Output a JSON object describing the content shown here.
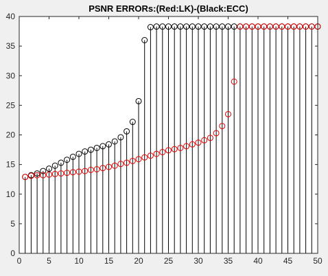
{
  "chart_data": {
    "type": "stem",
    "title": "PSNR ERRORs:(Red:LK)-(Black:ECC)",
    "xlabel": "",
    "ylabel": "",
    "xlim": [
      0,
      50
    ],
    "ylim": [
      0,
      40
    ],
    "xticks": [
      0,
      5,
      10,
      15,
      20,
      25,
      30,
      35,
      40,
      45,
      50
    ],
    "yticks": [
      0,
      5,
      10,
      15,
      20,
      25,
      30,
      35,
      40
    ],
    "grid": false,
    "legend": "none",
    "x": [
      1,
      2,
      3,
      4,
      5,
      6,
      7,
      8,
      9,
      10,
      11,
      12,
      13,
      14,
      15,
      16,
      17,
      18,
      19,
      20,
      21,
      22,
      23,
      24,
      25,
      26,
      27,
      28,
      29,
      30,
      31,
      32,
      33,
      34,
      35,
      36,
      37,
      38,
      39,
      40,
      41,
      42,
      43,
      44,
      45,
      46,
      47,
      48,
      49,
      50
    ],
    "series": [
      {
        "color": "#000000",
        "marker": "circle",
        "stems": true,
        "values": [
          12.9,
          13.2,
          13.5,
          13.9,
          14.3,
          14.8,
          15.3,
          15.8,
          16.3,
          16.8,
          17.2,
          17.5,
          17.8,
          18.1,
          18.4,
          18.9,
          19.6,
          20.6,
          22.2,
          25.7,
          36.0,
          38.2,
          38.3,
          38.3,
          38.3,
          38.3,
          38.3,
          38.3,
          38.3,
          38.3,
          38.3,
          38.3,
          38.3,
          38.3,
          38.3,
          38.3,
          38.3,
          38.3,
          38.3,
          38.3,
          38.3,
          38.3,
          38.3,
          38.3,
          38.3,
          38.3,
          38.3,
          38.3,
          38.3,
          38.3
        ]
      },
      {
        "color": "#e00000",
        "marker": "circle",
        "stems": false,
        "values": [
          12.9,
          13.1,
          13.2,
          13.2,
          13.3,
          13.4,
          13.5,
          13.6,
          13.7,
          13.8,
          13.9,
          14.1,
          14.2,
          14.4,
          14.6,
          14.8,
          15.1,
          15.3,
          15.6,
          15.9,
          16.2,
          16.5,
          16.8,
          17.1,
          17.4,
          17.6,
          17.8,
          18.1,
          18.4,
          18.7,
          19.1,
          19.5,
          20.3,
          21.5,
          23.5,
          29.0,
          38.3,
          38.3,
          38.3,
          38.3,
          38.3,
          38.3,
          38.3,
          38.3,
          38.3,
          38.3,
          38.3,
          38.3,
          38.3,
          38.3
        ]
      }
    ]
  }
}
